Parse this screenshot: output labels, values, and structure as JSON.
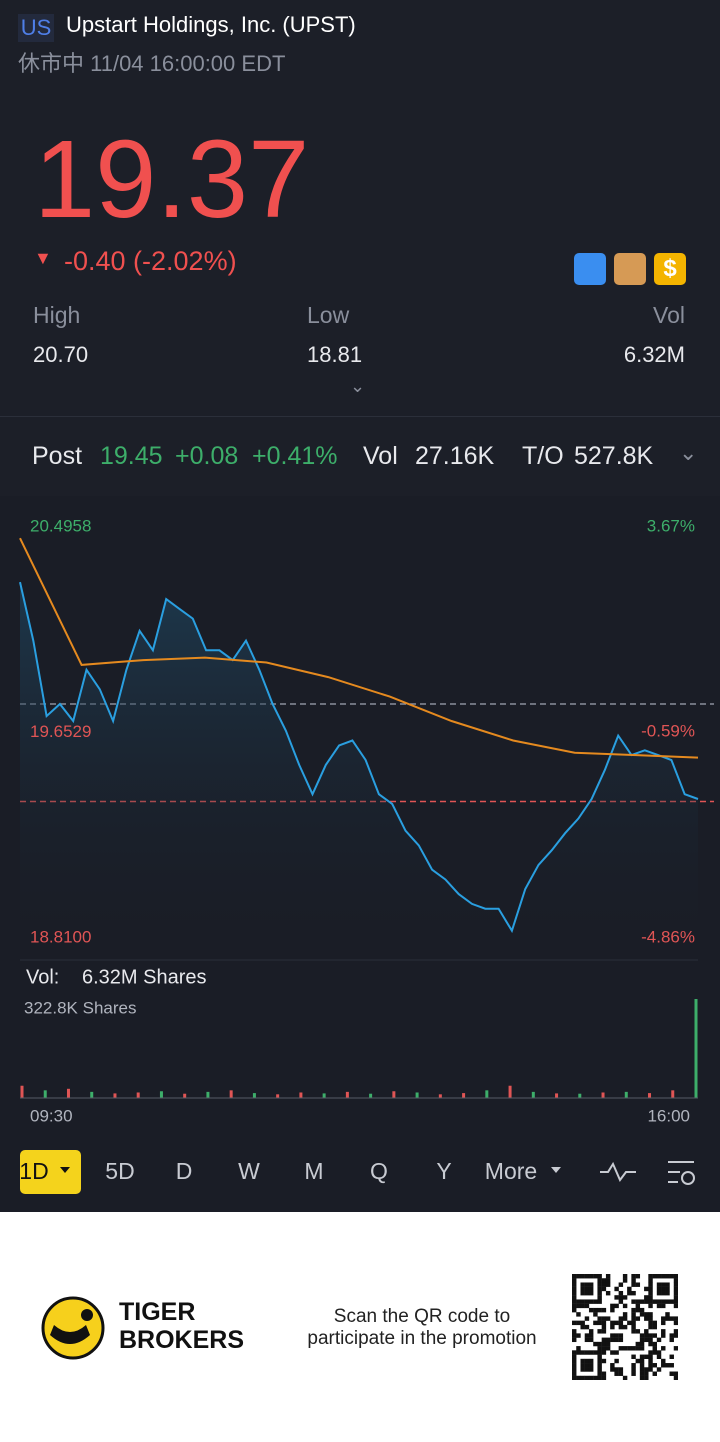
{
  "header": {
    "market": "US",
    "name": "Upstart Holdings, Inc. (UPST)",
    "status": "休市中 11/04 16:00:00 EDT"
  },
  "quote": {
    "price": "19.37",
    "change": "-0.40 (-2.02%)"
  },
  "stats": [
    {
      "label": "High",
      "value": "20.70"
    },
    {
      "label": "Low",
      "value": "18.81"
    },
    {
      "label": "Vol",
      "value": "6.32M"
    }
  ],
  "post": {
    "label": "Post",
    "price": "19.45",
    "change": "+0.08",
    "pct": "+0.41%",
    "vol_label": "Vol",
    "vol": "27.16K",
    "to_label": "T/O",
    "to": "527.8K"
  },
  "chart_data": {
    "type": "line",
    "ylim": [
      18.81,
      20.4958
    ],
    "yticks": [
      20.4958,
      19.6529,
      {
        "value": 18.81,
        "label": "18.8100"
      }
    ],
    "y2lim": [
      -4.86,
      3.67
    ],
    "y2ticks": [
      {
        "value": 3.67,
        "label": "3.67%"
      },
      {
        "value": -0.59,
        "label": "-0.59%"
      },
      {
        "value": -4.86,
        "label": "-4.86%"
      }
    ],
    "x_labels": [
      "09:30",
      "16:00"
    ],
    "reference_lines": [
      {
        "value": 19.77,
        "color": "#8a8f9c"
      },
      {
        "value": 19.37,
        "color": "#e05555"
      }
    ],
    "series": [
      {
        "color": "#2a9fe0",
        "values": [
          20.27,
          20.03,
          19.72,
          19.77,
          19.7,
          19.91,
          19.83,
          19.7,
          19.91,
          20.07,
          19.99,
          20.2,
          20.16,
          20.12,
          19.99,
          19.99,
          19.95,
          20.03,
          19.91,
          19.77,
          19.66,
          19.52,
          19.4,
          19.52,
          19.6,
          19.62,
          19.54,
          19.4,
          19.36,
          19.25,
          19.19,
          19.09,
          19.05,
          18.99,
          18.95,
          18.93,
          18.93,
          18.84,
          19.01,
          19.11,
          19.17,
          19.24,
          19.3,
          19.38,
          19.5,
          19.64,
          19.56,
          19.58,
          19.56,
          19.54,
          19.4,
          19.38
        ]
      },
      {
        "color": "#e58a1f",
        "values": [
          20.45,
          19.93,
          19.95,
          19.96,
          19.94,
          19.88,
          19.8,
          19.7,
          19.62,
          19.57,
          19.56,
          19.55
        ]
      }
    ]
  },
  "volume": {
    "label": "Vol:",
    "total": "6.32M Shares",
    "max_label": "322.8K Shares",
    "ylim": [
      0,
      322.8
    ],
    "values": [
      40,
      25,
      30,
      20,
      15,
      18,
      22,
      14,
      20,
      25,
      16,
      12,
      18,
      15,
      20,
      14,
      22,
      18,
      12,
      16,
      25,
      40,
      20,
      15,
      14,
      18,
      20,
      16,
      25,
      322.8
    ],
    "colors": [
      "#e05555",
      "#3dae6a",
      "#e05555",
      "#3dae6a",
      "#e05555",
      "#e05555",
      "#3dae6a",
      "#e05555",
      "#3dae6a",
      "#e05555",
      "#3dae6a",
      "#e05555",
      "#e05555",
      "#3dae6a",
      "#e05555",
      "#3dae6a",
      "#e05555",
      "#3dae6a",
      "#e05555",
      "#e05555",
      "#3dae6a",
      "#e05555",
      "#3dae6a",
      "#e05555",
      "#3dae6a",
      "#e05555",
      "#3dae6a",
      "#e05555",
      "#e05555",
      "#3dae6a"
    ]
  },
  "periods": [
    "1D",
    "5D",
    "D",
    "W",
    "M",
    "Q",
    "Y",
    "More"
  ],
  "footer": {
    "brand": [
      "TIGER",
      "BROKERS"
    ],
    "promo": [
      "Scan the QR code to",
      "participate in the promotion"
    ]
  }
}
